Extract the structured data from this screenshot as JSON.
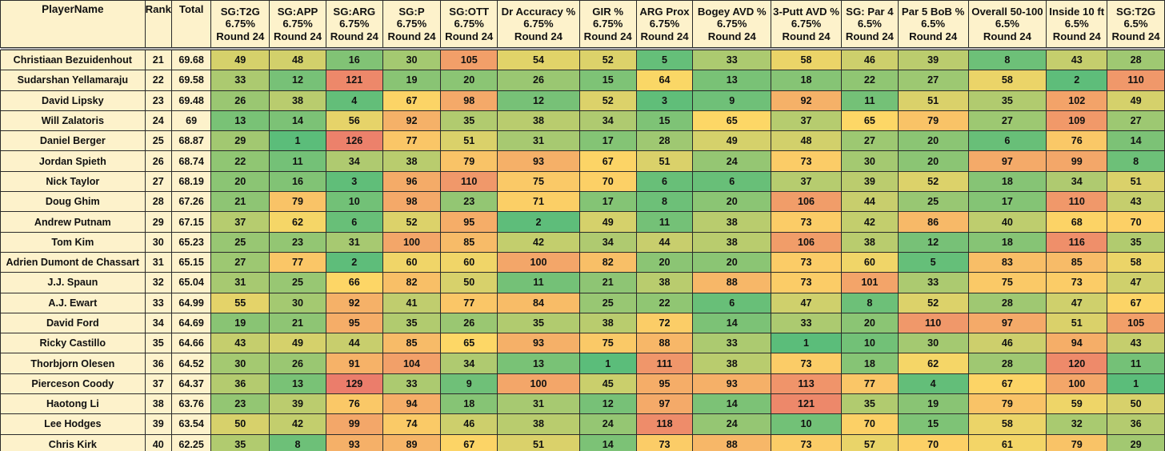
{
  "headers": [
    {
      "lines": [
        "PlayerName"
      ]
    },
    {
      "lines": [
        "Rank"
      ]
    },
    {
      "lines": [
        "Total"
      ]
    },
    {
      "lines": [
        "SG:T2G",
        "6.75%",
        "Round 24"
      ]
    },
    {
      "lines": [
        "SG:APP",
        "6.75%",
        "Round 24"
      ]
    },
    {
      "lines": [
        "SG:ARG",
        "6.75%",
        "Round 24"
      ]
    },
    {
      "lines": [
        "SG:P",
        "6.75%",
        "Round 24"
      ]
    },
    {
      "lines": [
        "SG:OTT",
        "6.75%",
        "Round 24"
      ]
    },
    {
      "lines": [
        "Dr Accuracy %",
        "6.75%",
        "Round 24"
      ]
    },
    {
      "lines": [
        "GIR %",
        "6.75%",
        "Round 24"
      ]
    },
    {
      "lines": [
        "ARG Prox",
        "6.75%",
        "Round 24"
      ]
    },
    {
      "lines": [
        "Bogey AVD %",
        "6.75%",
        "Round 24"
      ]
    },
    {
      "lines": [
        "3-Putt AVD %",
        "6.75%",
        "Round 24"
      ]
    },
    {
      "lines": [
        "SG: Par 4",
        "6.5%",
        "Round 24"
      ]
    },
    {
      "lines": [
        "Par 5 BoB %",
        "6.5%",
        "Round 24"
      ]
    },
    {
      "lines": [
        "Overall 50-100",
        "6.5%",
        "Round 24"
      ]
    },
    {
      "lines": [
        "Inside 10 ft",
        "6.5%",
        "Round 24"
      ]
    },
    {
      "lines": [
        "SG:T2G",
        "6.5%",
        "Round 24"
      ]
    }
  ],
  "scale": {
    "min": 1,
    "max": 129
  },
  "colors": {
    "header_bg": "#fdf2cb",
    "low": "#5bbd7a",
    "mid": "#fdd766",
    "high": "#eb7d6b"
  },
  "rows": [
    {
      "name": "Christiaan Bezuidenhout",
      "rank": "21",
      "total": "69.68",
      "stats": [
        49,
        48,
        16,
        30,
        105,
        54,
        52,
        5,
        33,
        58,
        46,
        39,
        8,
        43,
        28
      ]
    },
    {
      "name": "Sudarshan Yellamaraju",
      "rank": "22",
      "total": "69.58",
      "stats": [
        33,
        12,
        121,
        19,
        20,
        26,
        15,
        64,
        13,
        18,
        22,
        27,
        58,
        2,
        110
      ]
    },
    {
      "name": "David Lipsky",
      "rank": "23",
      "total": "69.48",
      "stats": [
        26,
        38,
        4,
        67,
        98,
        12,
        52,
        3,
        9,
        92,
        11,
        51,
        35,
        102,
        49
      ]
    },
    {
      "name": "Will Zalatoris",
      "rank": "24",
      "total": "69",
      "stats": [
        13,
        14,
        56,
        92,
        35,
        38,
        34,
        15,
        65,
        37,
        65,
        79,
        27,
        109,
        27
      ]
    },
    {
      "name": "Daniel Berger",
      "rank": "25",
      "total": "68.87",
      "stats": [
        29,
        1,
        126,
        77,
        51,
        31,
        17,
        28,
        49,
        48,
        27,
        20,
        6,
        76,
        14
      ]
    },
    {
      "name": "Jordan Spieth",
      "rank": "26",
      "total": "68.74",
      "stats": [
        22,
        11,
        34,
        38,
        79,
        93,
        67,
        51,
        24,
        73,
        30,
        20,
        97,
        99,
        8
      ]
    },
    {
      "name": "Nick Taylor",
      "rank": "27",
      "total": "68.19",
      "stats": [
        20,
        16,
        3,
        96,
        110,
        75,
        70,
        6,
        6,
        37,
        39,
        52,
        18,
        34,
        51
      ]
    },
    {
      "name": "Doug Ghim",
      "rank": "28",
      "total": "67.26",
      "stats": [
        21,
        79,
        10,
        98,
        23,
        71,
        17,
        8,
        20,
        106,
        44,
        25,
        17,
        110,
        43
      ]
    },
    {
      "name": "Andrew Putnam",
      "rank": "29",
      "total": "67.15",
      "stats": [
        37,
        62,
        6,
        52,
        95,
        2,
        49,
        11,
        38,
        73,
        42,
        86,
        40,
        68,
        70
      ]
    },
    {
      "name": "Tom Kim",
      "rank": "30",
      "total": "65.23",
      "stats": [
        25,
        23,
        31,
        100,
        85,
        42,
        34,
        44,
        38,
        106,
        38,
        12,
        18,
        116,
        35
      ]
    },
    {
      "name": "Adrien Dumont de Chassart",
      "rank": "31",
      "total": "65.15",
      "stats": [
        27,
        77,
        2,
        60,
        60,
        100,
        82,
        20,
        20,
        73,
        60,
        5,
        83,
        85,
        58
      ]
    },
    {
      "name": "J.J. Spaun",
      "rank": "32",
      "total": "65.04",
      "stats": [
        31,
        25,
        66,
        82,
        50,
        11,
        21,
        38,
        88,
        73,
        101,
        33,
        75,
        73,
        47
      ]
    },
    {
      "name": "A.J. Ewart",
      "rank": "33",
      "total": "64.99",
      "stats": [
        55,
        30,
        92,
        41,
        77,
        84,
        25,
        22,
        6,
        47,
        8,
        52,
        28,
        47,
        67
      ]
    },
    {
      "name": "David Ford",
      "rank": "34",
      "total": "64.69",
      "stats": [
        19,
        21,
        95,
        35,
        26,
        35,
        38,
        72,
        14,
        33,
        20,
        110,
        97,
        51,
        105
      ]
    },
    {
      "name": "Ricky Castillo",
      "rank": "35",
      "total": "64.66",
      "stats": [
        43,
        49,
        44,
        85,
        65,
        93,
        75,
        88,
        33,
        1,
        10,
        30,
        46,
        94,
        43
      ]
    },
    {
      "name": "Thorbjorn Olesen",
      "rank": "36",
      "total": "64.52",
      "stats": [
        30,
        26,
        91,
        104,
        34,
        13,
        1,
        111,
        38,
        73,
        18,
        62,
        28,
        120,
        11
      ]
    },
    {
      "name": "Pierceson Coody",
      "rank": "37",
      "total": "64.37",
      "stats": [
        36,
        13,
        129,
        33,
        9,
        100,
        45,
        95,
        93,
        113,
        77,
        4,
        67,
        100,
        1
      ]
    },
    {
      "name": "Haotong Li",
      "rank": "38",
      "total": "63.76",
      "stats": [
        23,
        39,
        76,
        94,
        18,
        31,
        12,
        97,
        14,
        121,
        35,
        19,
        79,
        59,
        50
      ]
    },
    {
      "name": "Lee Hodges",
      "rank": "39",
      "total": "63.54",
      "stats": [
        50,
        42,
        99,
        74,
        46,
        38,
        24,
        118,
        24,
        10,
        70,
        15,
        58,
        32,
        36
      ]
    },
    {
      "name": "Chris Kirk",
      "rank": "40",
      "total": "62.25",
      "stats": [
        35,
        8,
        93,
        89,
        67,
        51,
        14,
        73,
        88,
        73,
        57,
        70,
        61,
        79,
        29
      ]
    }
  ]
}
